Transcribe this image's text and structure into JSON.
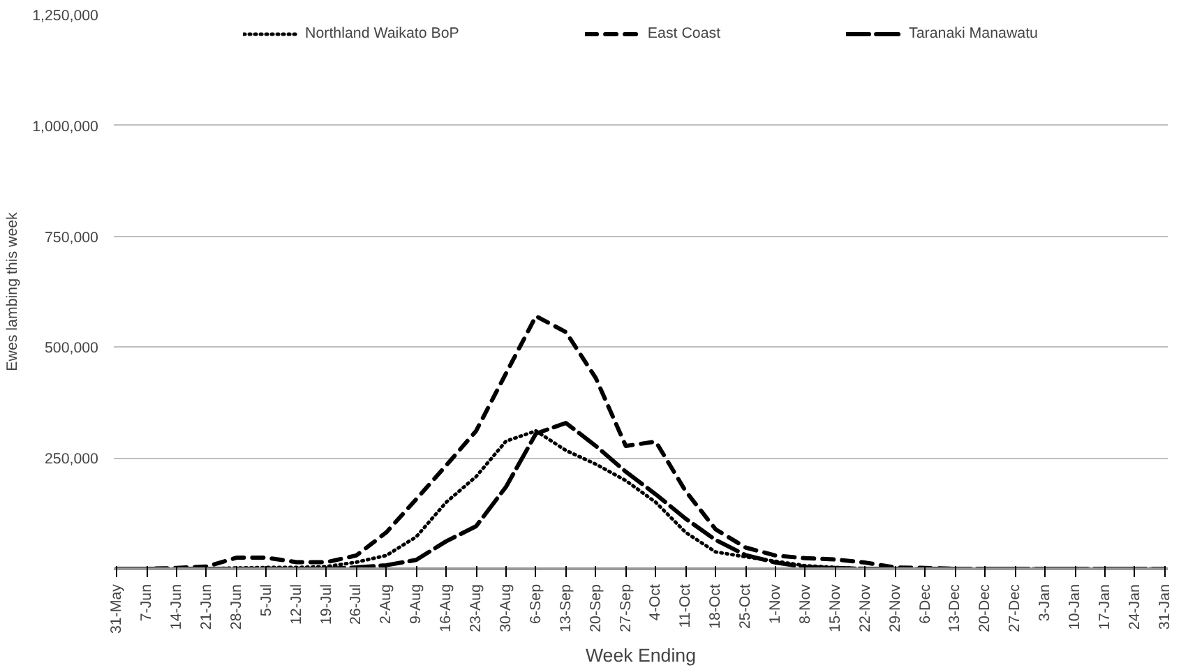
{
  "chart_data": {
    "type": "line",
    "xlabel": "Week Ending",
    "ylabel": "Ewes lambing this week",
    "categories": [
      "31-May",
      "7-Jun",
      "14-Jun",
      "21-Jun",
      "28-Jun",
      "5-Jul",
      "12-Jul",
      "19-Jul",
      "26-Jul",
      "2-Aug",
      "9-Aug",
      "16-Aug",
      "23-Aug",
      "30-Aug",
      "6-Sep",
      "13-Sep",
      "20-Sep",
      "27-Sep",
      "4-Oct",
      "11-Oct",
      "18-Oct",
      "25-Oct",
      "1-Nov",
      "8-Nov",
      "15-Nov",
      "22-Nov",
      "29-Nov",
      "6-Dec",
      "13-Dec",
      "20-Dec",
      "27-Dec",
      "3-Jan",
      "10-Jan",
      "17-Jan",
      "24-Jan",
      "31-Jan"
    ],
    "series": [
      {
        "name": "Northland Waikato BoP",
        "color": "#000000",
        "line_style": "dotted",
        "values": [
          0,
          0,
          0,
          0,
          2000,
          3000,
          3000,
          5000,
          15000,
          30000,
          72000,
          150000,
          208000,
          288000,
          311000,
          267000,
          236000,
          199000,
          150000,
          82000,
          38000,
          27000,
          17000,
          7000,
          3000,
          0,
          0,
          0,
          0,
          0,
          0,
          0,
          0,
          0,
          0,
          0
        ]
      },
      {
        "name": "East Coast",
        "color": "#000000",
        "line_style": "dashed",
        "values": [
          0,
          0,
          2000,
          5000,
          25000,
          25000,
          15000,
          15000,
          30000,
          82000,
          157000,
          233000,
          311000,
          441000,
          570000,
          534000,
          430000,
          277000,
          287000,
          175000,
          89000,
          48000,
          30000,
          24000,
          21000,
          14000,
          3000,
          2000,
          0,
          0,
          0,
          0,
          0,
          0,
          0,
          0
        ]
      },
      {
        "name": "Taranaki Manawatu",
        "color": "#000000",
        "line_style": "longdash",
        "values": [
          0,
          0,
          0,
          0,
          0,
          0,
          0,
          0,
          3000,
          8000,
          20000,
          62000,
          96000,
          185000,
          305000,
          329000,
          277000,
          219000,
          168000,
          113000,
          65000,
          31000,
          14000,
          4000,
          2000,
          0,
          0,
          0,
          0,
          0,
          0,
          0,
          0,
          0,
          0,
          0
        ]
      }
    ],
    "ylim": [
      0,
      1250000
    ],
    "yticks": [
      {
        "value": 0,
        "label": null
      },
      {
        "value": 250000,
        "label": "250,000"
      },
      {
        "value": 500000,
        "label": "500,000"
      },
      {
        "value": 750000,
        "label": "750,000"
      },
      {
        "value": 1000000,
        "label": "1,000,000"
      },
      {
        "value": 1250000,
        "label": "1,250,000"
      }
    ],
    "grid": "y",
    "legend": "top",
    "marker": "none"
  }
}
